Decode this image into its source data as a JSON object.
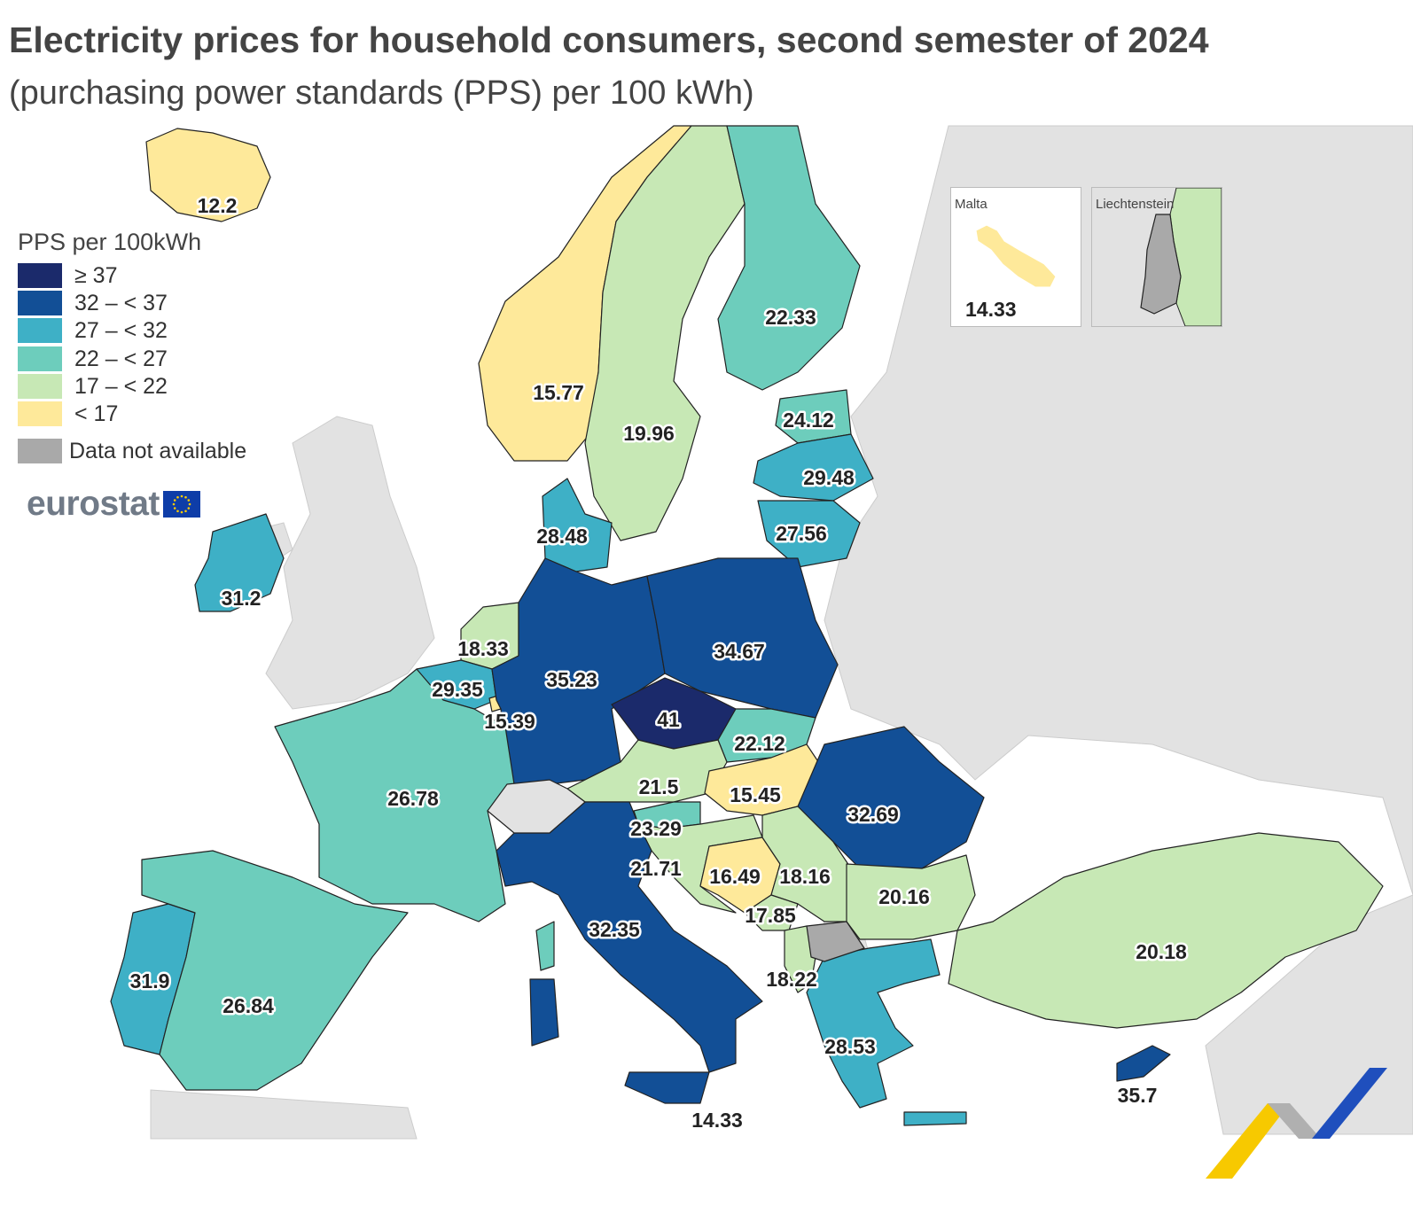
{
  "title": "Electricity prices for household consumers, second semester of 2024",
  "subtitle": "(purchasing power standards (PPS) per 100 kWh)",
  "legend": {
    "title": "PPS per 100kWh",
    "classes": [
      {
        "label": "≥ 37",
        "color": "#1b2a6b"
      },
      {
        "label": "32 – < 37",
        "color": "#124f96"
      },
      {
        "label": "27 – < 32",
        "color": "#3eb0c6"
      },
      {
        "label": "22 – < 27",
        "color": "#6dcdbc"
      },
      {
        "label": "17 – < 22",
        "color": "#c7e8b5"
      },
      {
        "label": "< 17",
        "color": "#fee99a"
      }
    ],
    "no_data": {
      "label": "Data not available",
      "color": "#a9a9a9"
    }
  },
  "logo": {
    "text": "eurostat"
  },
  "insets": [
    {
      "name": "Malta",
      "value": "14.33",
      "color": "#fee99a"
    },
    {
      "name": "Liechtenstein",
      "value": "",
      "color": "#a9a9a9"
    }
  ],
  "colors": {
    "sea": "#ffffff",
    "non_member": "#e2e2e2",
    "border": "#222222"
  },
  "countries": [
    {
      "name": "Iceland",
      "value": "12.2",
      "class": 5
    },
    {
      "name": "Norway",
      "value": "15.77",
      "class": 5
    },
    {
      "name": "Sweden",
      "value": "19.96",
      "class": 4
    },
    {
      "name": "Finland",
      "value": "22.33",
      "class": 3
    },
    {
      "name": "Estonia",
      "value": "24.12",
      "class": 3
    },
    {
      "name": "Latvia",
      "value": "29.48",
      "class": 2
    },
    {
      "name": "Lithuania",
      "value": "27.56",
      "class": 2
    },
    {
      "name": "Denmark",
      "value": "28.48",
      "class": 2
    },
    {
      "name": "Ireland",
      "value": "31.2",
      "class": 2
    },
    {
      "name": "Netherlands",
      "value": "18.33",
      "class": 4
    },
    {
      "name": "Belgium",
      "value": "29.35",
      "class": 2
    },
    {
      "name": "Luxembourg",
      "value": "15.39",
      "class": 5
    },
    {
      "name": "Germany",
      "value": "35.23",
      "class": 1
    },
    {
      "name": "Poland",
      "value": "34.67",
      "class": 1
    },
    {
      "name": "Czechia",
      "value": "41",
      "class": 0
    },
    {
      "name": "Slovakia",
      "value": "22.12",
      "class": 3
    },
    {
      "name": "Austria",
      "value": "21.5",
      "class": 4
    },
    {
      "name": "Hungary",
      "value": "15.45",
      "class": 5
    },
    {
      "name": "Romania",
      "value": "32.69",
      "class": 1
    },
    {
      "name": "France",
      "value": "26.78",
      "class": 3
    },
    {
      "name": "Slovenia",
      "value": "23.29",
      "class": 3
    },
    {
      "name": "Croatia",
      "value": "21.71",
      "class": 4
    },
    {
      "name": "Bosnia and Herzegovina",
      "value": "16.49",
      "class": 5
    },
    {
      "name": "Serbia",
      "value": "18.16",
      "class": 4
    },
    {
      "name": "Montenegro",
      "value": "17.85",
      "class": 4
    },
    {
      "name": "Bulgaria",
      "value": "20.16",
      "class": 4
    },
    {
      "name": "Italy",
      "value": "32.35",
      "class": 1
    },
    {
      "name": "Albania",
      "value": "18.22",
      "class": 4
    },
    {
      "name": "Greece",
      "value": "28.53",
      "class": 2
    },
    {
      "name": "Portugal",
      "value": "31.9",
      "class": 2
    },
    {
      "name": "Spain",
      "value": "26.84",
      "class": 3
    },
    {
      "name": "Türkiye",
      "value": "20.18",
      "class": 4
    },
    {
      "name": "Cyprus",
      "value": "35.7",
      "class": 1
    },
    {
      "name": "Malta",
      "value": "14.33",
      "class": 5
    }
  ]
}
